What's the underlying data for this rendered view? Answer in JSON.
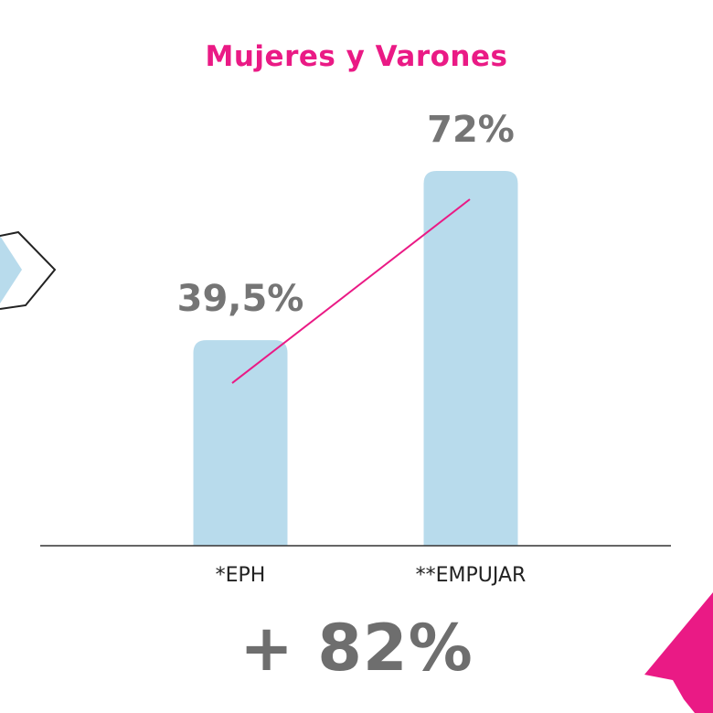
{
  "colors": {
    "accent": "#EA1A85",
    "bar": "#B8DBEC",
    "text_gray": "#757575",
    "axis": "#333333"
  },
  "chart_data": {
    "type": "bar",
    "title": "Mujeres y Varones",
    "categories": [
      "*EPH",
      "**EMPUJAR"
    ],
    "values": [
      39.5,
      72
    ],
    "value_labels": [
      "39,5%",
      "72%"
    ],
    "ylim": [
      0,
      80
    ],
    "grid": false,
    "trend_line": true
  },
  "total_label": "+ 82%",
  "decorations": [
    "chevron-arrow-icon",
    "pink-triangle-icon"
  ]
}
